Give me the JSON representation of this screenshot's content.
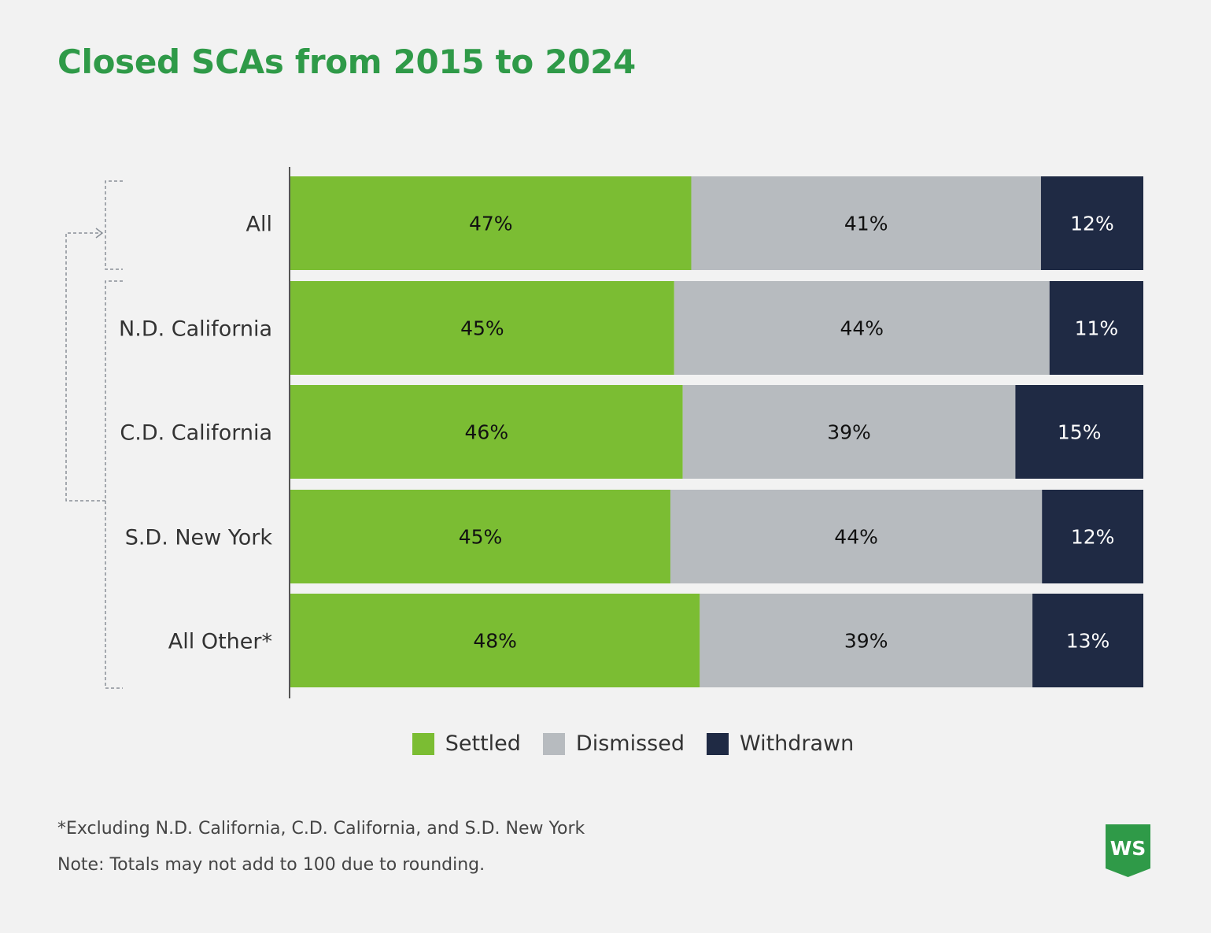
{
  "title": "Closed SCAs from 2015 to 2024",
  "chart_data": {
    "type": "bar",
    "orientation": "horizontal",
    "stacked": true,
    "categories": [
      "All",
      "N.D. California",
      "C.D. California",
      "S.D. New York",
      "All Other*"
    ],
    "series": [
      {
        "name": "Settled",
        "values": [
          47,
          45,
          46,
          45,
          48
        ],
        "labels": [
          "47%",
          "45%",
          "46%",
          "45%",
          "48%"
        ],
        "color": "#7bbd33"
      },
      {
        "name": "Dismissed",
        "values": [
          41,
          44,
          39,
          44,
          39
        ],
        "labels": [
          "41%",
          "44%",
          "39%",
          "44%",
          "39%"
        ],
        "color": "#b7bbbf"
      },
      {
        "name": "Withdrawn",
        "values": [
          12,
          11,
          15,
          12,
          13
        ],
        "labels": [
          "12%",
          "11%",
          "15%",
          "12%",
          "13%"
        ],
        "color": "#1f2a44"
      }
    ],
    "unit": "%",
    "legend_position": "bottom",
    "grid": false
  },
  "footnote": "*Excluding N.D. California, C.D. California, and S.D. New York",
  "note": "Note: Totals may not add to 100 due to rounding.",
  "logo": {
    "text": "WS",
    "color": "#2f9a48"
  }
}
